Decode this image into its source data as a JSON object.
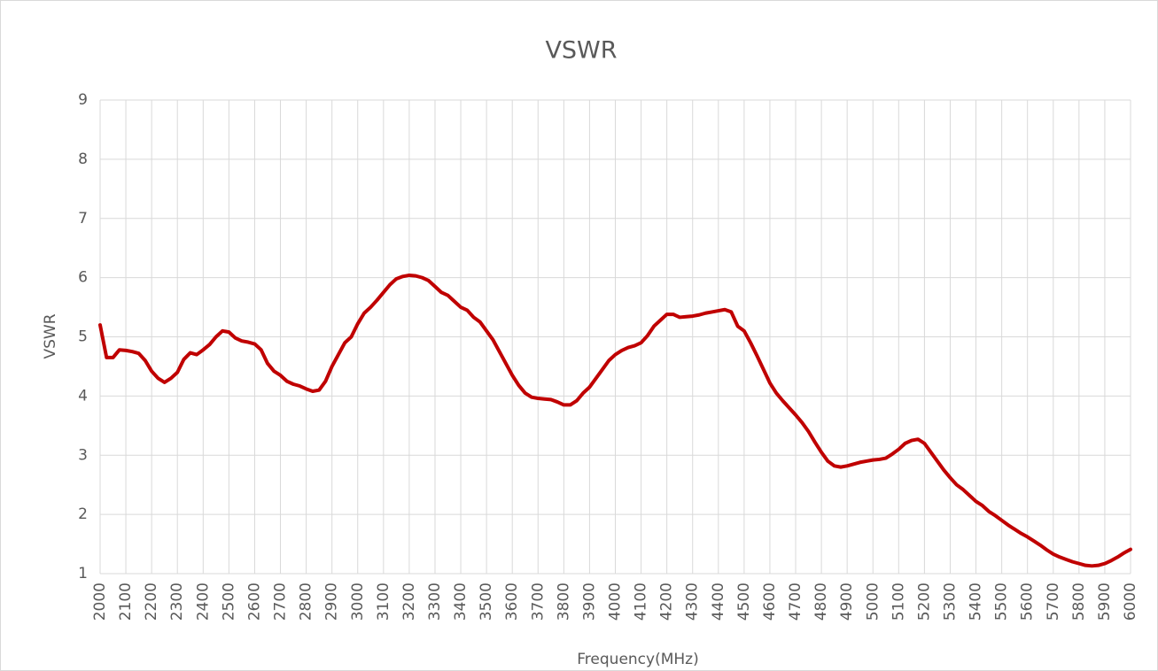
{
  "chart_data": {
    "type": "line",
    "title": "VSWR",
    "x_label": "Frequency(MHz)",
    "y_label": "VSWR",
    "x": [
      2000,
      2025,
      2050,
      2075,
      2100,
      2125,
      2150,
      2175,
      2200,
      2225,
      2250,
      2275,
      2300,
      2325,
      2350,
      2375,
      2400,
      2425,
      2450,
      2475,
      2500,
      2525,
      2550,
      2575,
      2600,
      2625,
      2650,
      2675,
      2700,
      2725,
      2750,
      2775,
      2800,
      2825,
      2850,
      2875,
      2900,
      2925,
      2950,
      2975,
      3000,
      3025,
      3050,
      3075,
      3100,
      3125,
      3150,
      3175,
      3200,
      3225,
      3250,
      3275,
      3300,
      3325,
      3350,
      3375,
      3400,
      3425,
      3450,
      3475,
      3500,
      3525,
      3550,
      3575,
      3600,
      3625,
      3650,
      3675,
      3700,
      3725,
      3750,
      3775,
      3800,
      3825,
      3850,
      3875,
      3900,
      3925,
      3950,
      3975,
      4000,
      4025,
      4050,
      4075,
      4100,
      4125,
      4150,
      4175,
      4200,
      4225,
      4250,
      4275,
      4300,
      4325,
      4350,
      4375,
      4400,
      4425,
      4450,
      4475,
      4500,
      4525,
      4550,
      4575,
      4600,
      4625,
      4650,
      4675,
      4700,
      4725,
      4750,
      4775,
      4800,
      4825,
      4850,
      4875,
      4900,
      4925,
      4950,
      4975,
      5000,
      5025,
      5050,
      5075,
      5100,
      5125,
      5150,
      5175,
      5200,
      5225,
      5250,
      5275,
      5300,
      5325,
      5350,
      5375,
      5400,
      5425,
      5450,
      5475,
      5500,
      5525,
      5550,
      5575,
      5600,
      5625,
      5650,
      5675,
      5700,
      5725,
      5750,
      5775,
      5800,
      5825,
      5850,
      5875,
      5900,
      5925,
      5950,
      5975,
      6000
    ],
    "series": [
      {
        "name": "VSWR",
        "color": "#c00000",
        "values": [
          5.2,
          4.65,
          4.65,
          4.78,
          4.77,
          4.75,
          4.72,
          4.6,
          4.42,
          4.3,
          4.23,
          4.3,
          4.4,
          4.62,
          4.73,
          4.7,
          4.78,
          4.87,
          5.0,
          5.1,
          5.08,
          4.98,
          4.93,
          4.91,
          4.88,
          4.78,
          4.55,
          4.42,
          4.35,
          4.25,
          4.2,
          4.17,
          4.12,
          4.08,
          4.1,
          4.25,
          4.5,
          4.7,
          4.9,
          5.0,
          5.22,
          5.4,
          5.5,
          5.62,
          5.75,
          5.88,
          5.98,
          6.02,
          6.04,
          6.03,
          6.0,
          5.95,
          5.85,
          5.75,
          5.7,
          5.6,
          5.5,
          5.45,
          5.33,
          5.25,
          5.1,
          4.95,
          4.75,
          4.55,
          4.35,
          4.18,
          4.05,
          3.98,
          3.96,
          3.95,
          3.94,
          3.9,
          3.85,
          3.85,
          3.92,
          4.05,
          4.15,
          4.3,
          4.45,
          4.6,
          4.7,
          4.77,
          4.82,
          4.85,
          4.9,
          5.02,
          5.18,
          5.28,
          5.38,
          5.38,
          5.33,
          5.34,
          5.35,
          5.37,
          5.4,
          5.42,
          5.44,
          5.46,
          5.42,
          5.18,
          5.1,
          4.9,
          4.68,
          4.45,
          4.22,
          4.05,
          3.92,
          3.8,
          3.68,
          3.55,
          3.4,
          3.22,
          3.05,
          2.9,
          2.82,
          2.8,
          2.82,
          2.85,
          2.88,
          2.9,
          2.92,
          2.93,
          2.95,
          3.02,
          3.1,
          3.2,
          3.25,
          3.27,
          3.2,
          3.05,
          2.9,
          2.75,
          2.62,
          2.5,
          2.42,
          2.32,
          2.22,
          2.15,
          2.05,
          1.98,
          1.9,
          1.82,
          1.75,
          1.68,
          1.62,
          1.55,
          1.48,
          1.4,
          1.33,
          1.28,
          1.24,
          1.2,
          1.17,
          1.14,
          1.13,
          1.14,
          1.17,
          1.22,
          1.28,
          1.35,
          1.41
        ]
      }
    ],
    "xlim": [
      2000,
      6000
    ],
    "xticks": [
      2000,
      2100,
      2200,
      2300,
      2400,
      2500,
      2600,
      2700,
      2800,
      2900,
      3000,
      3100,
      3200,
      3300,
      3400,
      3500,
      3600,
      3700,
      3800,
      3900,
      4000,
      4100,
      4200,
      4300,
      4400,
      4500,
      4600,
      4700,
      4800,
      4900,
      5000,
      5100,
      5200,
      5300,
      5400,
      5500,
      5600,
      5700,
      5800,
      5900,
      6000
    ],
    "ylim": [
      1,
      9
    ],
    "yticks": [
      1,
      2,
      3,
      4,
      5,
      6,
      7,
      8,
      9
    ],
    "grid": true
  }
}
